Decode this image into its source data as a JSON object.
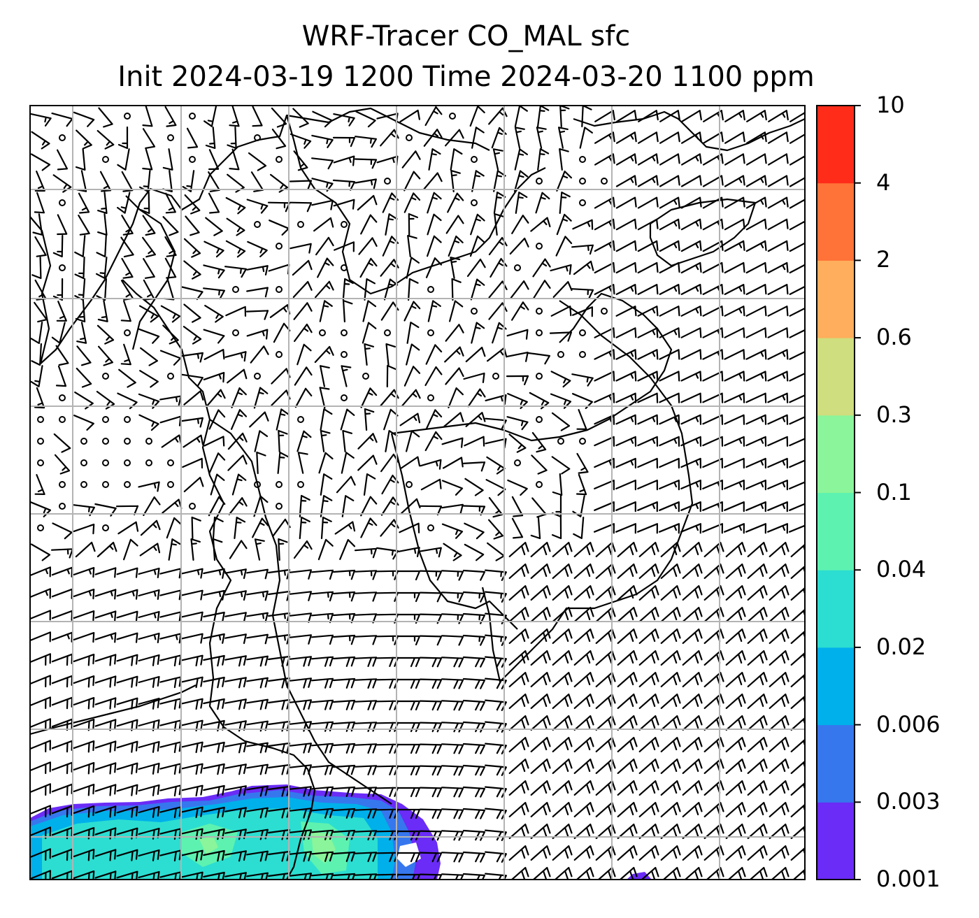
{
  "title": {
    "line1": "WRF-Tracer CO_MAL sfc",
    "line2": "Init 2024-03-19 1200 Time 2024-03-20 1100 ppm"
  },
  "colorbar": {
    "levels": [
      "0.001",
      "0.003",
      "0.006",
      "0.02",
      "0.04",
      "0.1",
      "0.3",
      "0.6",
      "2",
      "4",
      "10"
    ],
    "colors": [
      "#6a2cf6",
      "#3677ee",
      "#00b0ea",
      "#2cded1",
      "#5ef2b0",
      "#8af59a",
      "#cfde7e",
      "#feae5c",
      "#ff7238",
      "#ff2c1a"
    ]
  },
  "map": {
    "grid": "on",
    "wind_barbs": "on",
    "plume_region": "bottom-left",
    "colors": {
      "land_outline": "#000000",
      "gridlines": "#b3b3b3",
      "barbs": "#000000"
    }
  }
}
